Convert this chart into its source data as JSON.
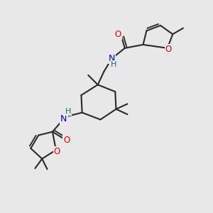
{
  "bg_color": "#e8e8e8",
  "bond_color": "#2a2a2a",
  "bond_width": 1.5,
  "atom_colors": {
    "O": "#dd0000",
    "N": "#0000bb",
    "H_on_N": "#007777"
  },
  "xlim": [
    -1,
    11
  ],
  "ylim": [
    -1,
    11
  ]
}
